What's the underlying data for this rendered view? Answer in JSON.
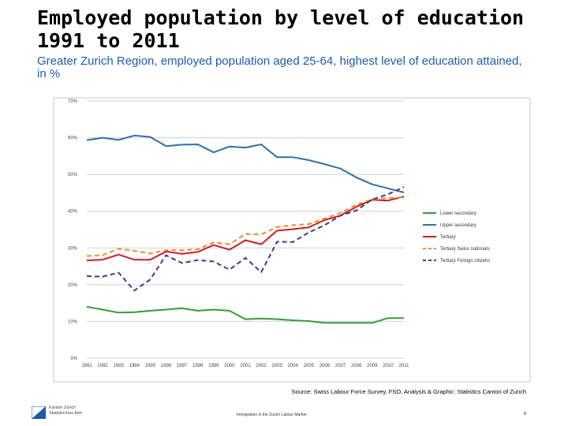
{
  "slide": {
    "title": "Employed population by level of education 1991 to 2011",
    "subtitle": "Greater Zurich Region, employed population aged 25-64, highest level of education attained, in %",
    "source": "Source: Swiss Labour Force Survey, FSO, Analysis & Graphic: Statistics Canton of Zurich",
    "footer_center": "Immigration in the Zurich Labour Market",
    "page_number": "6",
    "logo_text": [
      "Kanton Zürich",
      "Statistisches Amt"
    ]
  },
  "colors": {
    "lower_secondary": "#3a9a3a",
    "upper_secondary": "#2f6fa8",
    "tertiary": "#c8202a",
    "tertiary_swiss": "#f08a30",
    "tertiary_foreign": "#3c3c8a",
    "grid": "#d0d0d0",
    "frame": "#c8c8c8",
    "logo": "#1f5aa8"
  },
  "chart_data": {
    "type": "line",
    "title": "Employed population by level of education 1991 to 2011",
    "xlabel": "",
    "ylabel": "",
    "ylim": [
      0,
      70
    ],
    "yticks": [
      0,
      10,
      20,
      30,
      40,
      50,
      60,
      70
    ],
    "ytick_labels": [
      "0%",
      "10%",
      "20%",
      "30%",
      "40%",
      "50%",
      "60%",
      "70%"
    ],
    "categories": [
      "1991",
      "1992",
      "1993",
      "1994",
      "1995",
      "1996",
      "1997",
      "1998",
      "1999",
      "2000",
      "2001",
      "2002",
      "2003",
      "2004",
      "2005",
      "2006",
      "2007",
      "2008",
      "2009",
      "2010",
      "2011"
    ],
    "legend_position": "right",
    "series": [
      {
        "name": "Lower secondary",
        "key": "lower_secondary",
        "dash": false,
        "values": [
          14.0,
          13.2,
          12.4,
          12.5,
          12.9,
          13.2,
          13.6,
          12.9,
          13.2,
          12.9,
          10.6,
          10.8,
          10.6,
          10.3,
          10.1,
          9.6,
          9.6,
          9.6,
          9.6,
          10.9,
          10.9
        ]
      },
      {
        "name": "Upper secondary",
        "key": "upper_secondary",
        "dash": false,
        "values": [
          59.3,
          60.0,
          59.4,
          60.6,
          60.2,
          57.7,
          58.1,
          58.2,
          56.0,
          57.6,
          57.3,
          58.2,
          54.7,
          54.7,
          53.9,
          52.8,
          51.6,
          49.2,
          47.3,
          46.2,
          45.1
        ]
      },
      {
        "name": "Tertiary",
        "key": "tertiary",
        "dash": false,
        "values": [
          26.6,
          26.8,
          28.2,
          26.8,
          26.8,
          29.0,
          28.4,
          28.9,
          30.8,
          29.5,
          32.1,
          31.0,
          34.7,
          35.1,
          35.6,
          37.6,
          38.8,
          41.2,
          43.1,
          42.9,
          44.0
        ]
      },
      {
        "name": "Tertiary Swiss nationals",
        "key": "tertiary_swiss",
        "dash": true,
        "values": [
          27.8,
          28.0,
          29.8,
          29.2,
          28.5,
          29.4,
          29.4,
          29.6,
          31.5,
          31.0,
          33.8,
          33.7,
          35.7,
          36.2,
          36.5,
          38.0,
          39.5,
          41.8,
          43.2,
          43.6,
          43.8
        ]
      },
      {
        "name": "Tertiary Foreign citizens",
        "key": "tertiary_foreign",
        "dash": true,
        "values": [
          22.3,
          22.2,
          23.3,
          18.4,
          21.4,
          28.0,
          25.9,
          26.7,
          26.3,
          24.1,
          27.3,
          23.4,
          31.7,
          31.6,
          34.2,
          36.2,
          38.8,
          40.2,
          43.2,
          44.6,
          46.6
        ]
      }
    ]
  }
}
